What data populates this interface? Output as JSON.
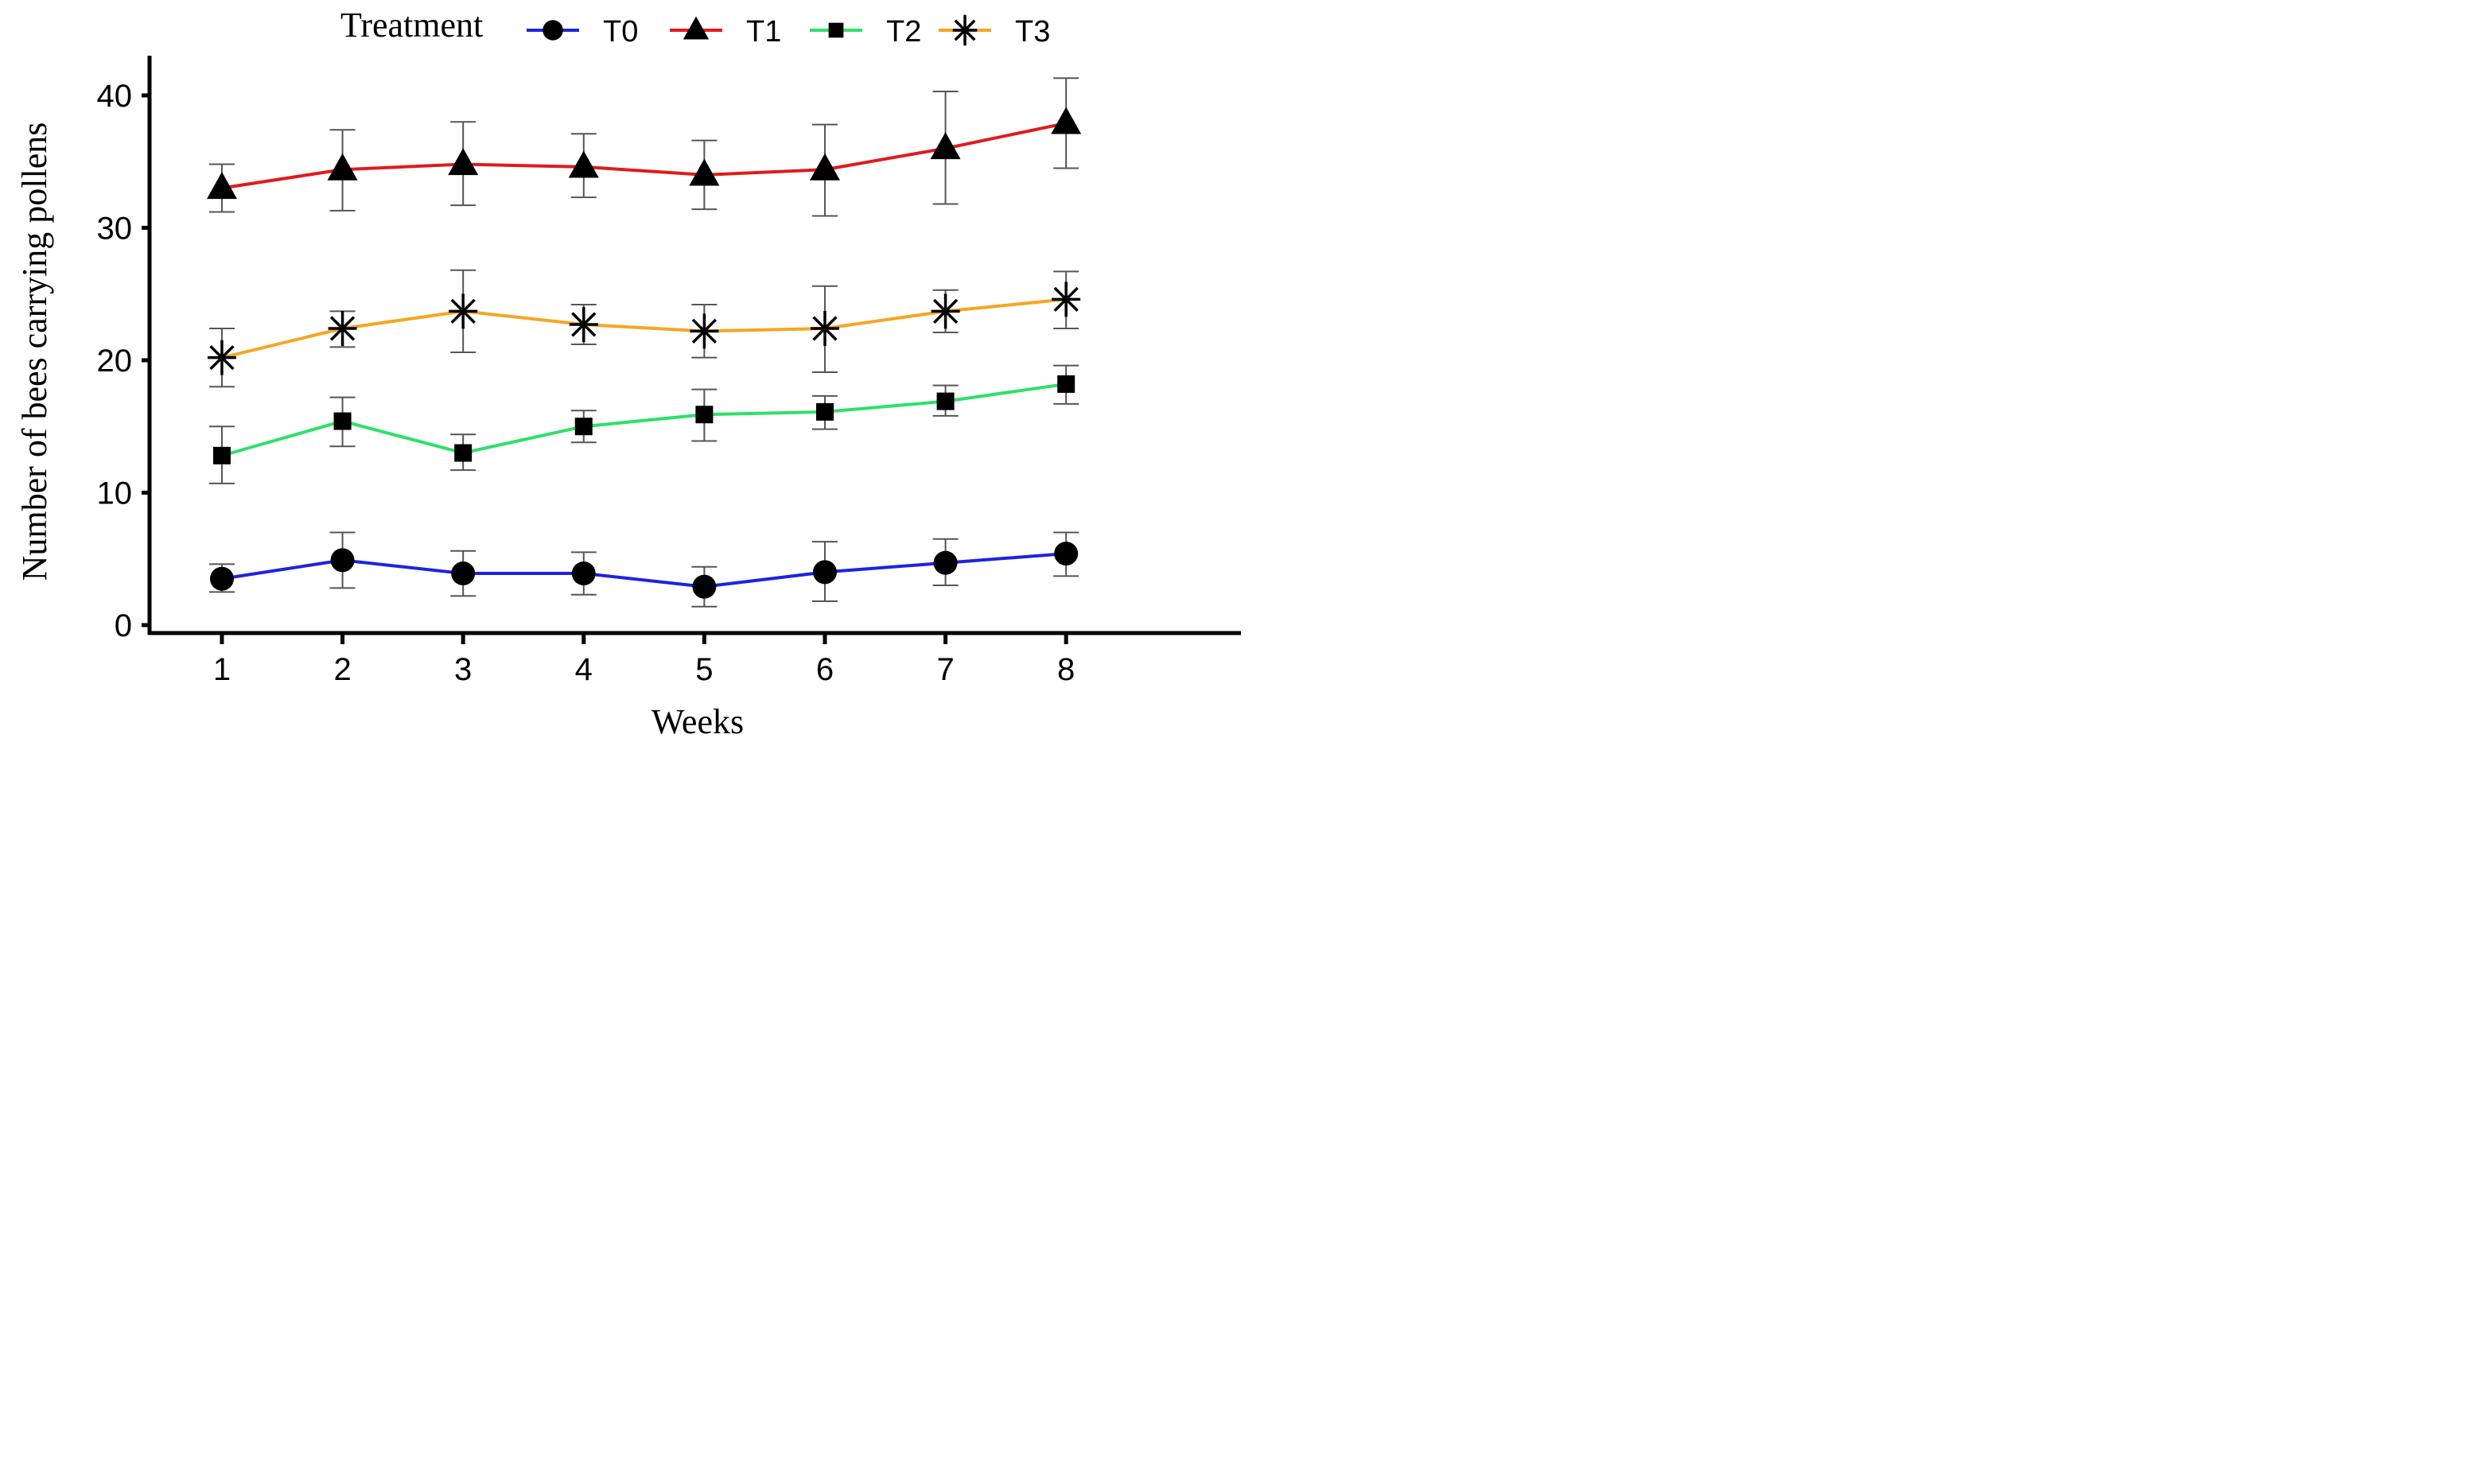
{
  "chart_data": {
    "type": "line",
    "xlabel": "Weeks",
    "ylabel": "Number of bees carrying pollens",
    "legend_title": "Treatment",
    "legend_position": "top",
    "x": [
      1,
      2,
      3,
      4,
      5,
      6,
      7,
      8
    ],
    "x_tick_labels": [
      "1",
      "2",
      "3",
      "4",
      "5",
      "6",
      "7",
      "8"
    ],
    "y_ticks": [
      0,
      10,
      20,
      30,
      40
    ],
    "y_tick_labels": [
      "0",
      "10",
      "20",
      "30",
      "40"
    ],
    "ylim": [
      0,
      43
    ],
    "xlim": [
      0.4,
      9.45
    ],
    "grid": false,
    "series": [
      {
        "name": "T0",
        "color": "#1d23e0",
        "marker": "circle",
        "values": [
          3.5,
          4.9,
          3.9,
          3.9,
          2.9,
          4.0,
          4.7,
          5.4
        ],
        "err_low": [
          2.5,
          2.8,
          2.2,
          2.3,
          1.4,
          1.8,
          3.0,
          3.7
        ],
        "err_high": [
          4.6,
          7.0,
          5.6,
          5.5,
          4.4,
          6.3,
          6.5,
          7.0
        ]
      },
      {
        "name": "T1",
        "color": "#e01b1b",
        "marker": "triangle",
        "values": [
          33.0,
          34.4,
          34.8,
          34.6,
          34.0,
          34.4,
          36.0,
          37.9
        ],
        "err_low": [
          31.2,
          31.3,
          31.7,
          32.3,
          31.4,
          30.9,
          31.8,
          34.5
        ],
        "err_high": [
          34.8,
          37.4,
          38.0,
          37.1,
          36.6,
          37.8,
          40.3,
          41.3
        ]
      },
      {
        "name": "T2",
        "color": "#2ee06a",
        "marker": "square",
        "values": [
          12.8,
          15.4,
          13.0,
          15.0,
          15.9,
          16.1,
          16.9,
          18.2
        ],
        "err_low": [
          10.7,
          13.5,
          11.7,
          13.8,
          13.9,
          14.8,
          15.8,
          16.7
        ],
        "err_high": [
          15.0,
          17.2,
          14.4,
          16.2,
          17.8,
          17.3,
          18.1,
          19.6
        ]
      },
      {
        "name": "T3",
        "color": "#f5a623",
        "marker": "asterisk",
        "values": [
          20.2,
          22.4,
          23.7,
          22.7,
          22.2,
          22.4,
          23.7,
          24.6
        ],
        "err_low": [
          18.0,
          21.0,
          20.6,
          21.2,
          20.2,
          19.1,
          22.1,
          22.4
        ],
        "err_high": [
          22.4,
          23.7,
          26.8,
          24.2,
          24.2,
          25.6,
          25.3,
          26.7
        ]
      }
    ]
  }
}
